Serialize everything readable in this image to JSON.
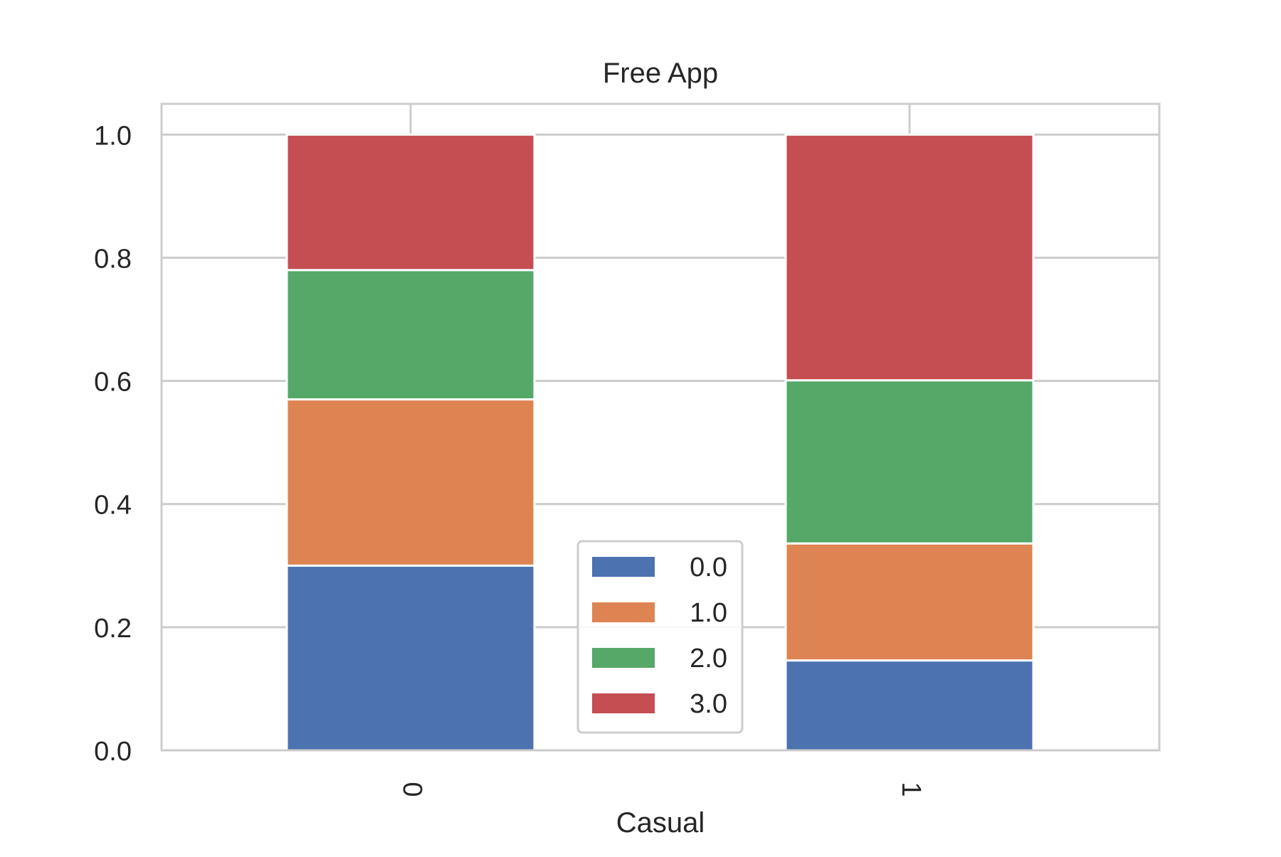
{
  "chart_data": {
    "type": "bar",
    "stacked": true,
    "title": "Free App",
    "xlabel": "Casual",
    "ylabel": "",
    "categories": [
      "0",
      "1"
    ],
    "ylim": [
      0,
      1.05
    ],
    "yticks": [
      "0.0",
      "0.2",
      "0.4",
      "0.6",
      "0.8",
      "1.0"
    ],
    "grid": true,
    "legend_position": "lower center",
    "series": [
      {
        "name": "0.0",
        "values": [
          0.3,
          0.146
        ],
        "color": "#4c72b0"
      },
      {
        "name": "1.0",
        "values": [
          0.27,
          0.19
        ],
        "color": "#dd8452"
      },
      {
        "name": "2.0",
        "values": [
          0.21,
          0.265
        ],
        "color": "#55a868"
      },
      {
        "name": "3.0",
        "values": [
          0.22,
          0.399
        ],
        "color": "#c44e52"
      }
    ]
  }
}
